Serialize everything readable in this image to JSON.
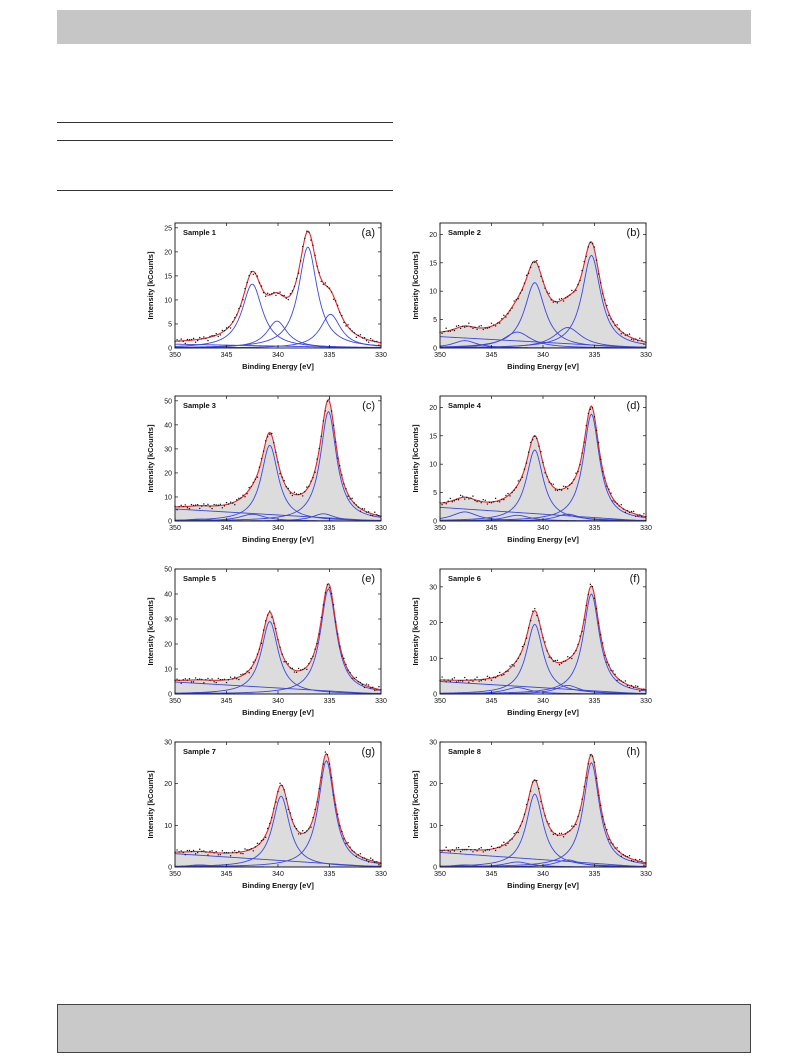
{
  "figure": {
    "x_axis_label": "Binding Energy [eV]",
    "y_axis_label": "Intensity [kCounts]"
  },
  "colors": {
    "data_points": "#111111",
    "envelope_fit": "#e0262b",
    "component_fit": "#3b46e0",
    "fill": "#dcdcdc",
    "top_bar": "#c6c6c6",
    "bottom_box": "#c9c9c9"
  },
  "chart_data": [
    {
      "type": "line",
      "title": "Sample 1",
      "panel_label": "(a)",
      "xlim": [
        350,
        330
      ],
      "ylim": [
        0,
        26
      ],
      "yticks": [
        0,
        5,
        10,
        15,
        20,
        25
      ],
      "xticks": [
        350,
        345,
        340,
        335,
        330
      ],
      "baseline": [
        {
          "x": 350,
          "y": 0.8
        },
        {
          "x": 330,
          "y": 0
        }
      ],
      "peaks": [
        {
          "position": 342.5,
          "height": 13.3,
          "width": 1.2
        },
        {
          "position": 340.1,
          "height": 5.6,
          "width": 1.2
        },
        {
          "position": 337.1,
          "height": 21.0,
          "width": 1.1
        },
        {
          "position": 334.9,
          "height": 7.0,
          "width": 1.2
        }
      ],
      "filled": false
    },
    {
      "type": "line",
      "title": "Sample 2",
      "panel_label": "(b)",
      "xlim": [
        350,
        330
      ],
      "ylim": [
        0,
        22
      ],
      "yticks": [
        0,
        5,
        10,
        15,
        20
      ],
      "xticks": [
        350,
        345,
        340,
        335,
        330
      ],
      "baseline": [
        {
          "x": 350,
          "y": 2.0
        },
        {
          "x": 330,
          "y": 0
        }
      ],
      "peaks": [
        {
          "position": 347.6,
          "height": 1.3,
          "width": 1.4
        },
        {
          "position": 342.5,
          "height": 2.8,
          "width": 1.6
        },
        {
          "position": 340.8,
          "height": 11.5,
          "width": 1.2
        },
        {
          "position": 337.6,
          "height": 3.6,
          "width": 1.6
        },
        {
          "position": 335.3,
          "height": 16.3,
          "width": 1.1
        }
      ],
      "filled": true
    },
    {
      "type": "line",
      "title": "Sample 3",
      "panel_label": "(c)",
      "xlim": [
        350,
        330
      ],
      "ylim": [
        0,
        52
      ],
      "yticks": [
        0,
        10,
        20,
        30,
        40,
        50
      ],
      "xticks": [
        350,
        345,
        340,
        335,
        330
      ],
      "baseline": [
        {
          "x": 350,
          "y": 5.0
        },
        {
          "x": 330,
          "y": 0
        }
      ],
      "peaks": [
        {
          "position": 347.6,
          "height": 0.8,
          "width": 1.5
        },
        {
          "position": 342.5,
          "height": 2.8,
          "width": 1.5
        },
        {
          "position": 340.8,
          "height": 31.5,
          "width": 1.0
        },
        {
          "position": 335.6,
          "height": 3.0,
          "width": 1.3
        },
        {
          "position": 335.1,
          "height": 45.5,
          "width": 0.95
        }
      ],
      "filled": true
    },
    {
      "type": "line",
      "title": "Sample 4",
      "panel_label": "(d)",
      "xlim": [
        350,
        330
      ],
      "ylim": [
        0,
        22
      ],
      "yticks": [
        0,
        5,
        10,
        15,
        20
      ],
      "xticks": [
        350,
        345,
        340,
        335,
        330
      ],
      "baseline": [
        {
          "x": 350,
          "y": 2.4
        },
        {
          "x": 330,
          "y": 0
        }
      ],
      "peaks": [
        {
          "position": 347.6,
          "height": 1.6,
          "width": 1.5
        },
        {
          "position": 342.5,
          "height": 1.0,
          "width": 1.5
        },
        {
          "position": 340.8,
          "height": 12.5,
          "width": 1.0
        },
        {
          "position": 337.6,
          "height": 1.2,
          "width": 1.4
        },
        {
          "position": 335.3,
          "height": 18.8,
          "width": 0.95
        }
      ],
      "filled": true
    },
    {
      "type": "line",
      "title": "Sample 5",
      "panel_label": "(e)",
      "xlim": [
        350,
        330
      ],
      "ylim": [
        0,
        50
      ],
      "yticks": [
        0,
        10,
        20,
        30,
        40,
        50
      ],
      "xticks": [
        350,
        345,
        340,
        335,
        330
      ],
      "baseline": [
        {
          "x": 350,
          "y": 4.8
        },
        {
          "x": 330,
          "y": 0
        }
      ],
      "peaks": [
        {
          "position": 347.6,
          "height": 0.6,
          "width": 1.5
        },
        {
          "position": 340.8,
          "height": 29.0,
          "width": 1.0
        },
        {
          "position": 335.1,
          "height": 42.0,
          "width": 0.95
        }
      ],
      "filled": true
    },
    {
      "type": "line",
      "title": "Sample 6",
      "panel_label": "(f)",
      "xlim": [
        350,
        330
      ],
      "ylim": [
        0,
        35
      ],
      "yticks": [
        0,
        10,
        20,
        30
      ],
      "xticks": [
        350,
        345,
        340,
        335,
        330
      ],
      "baseline": [
        {
          "x": 350,
          "y": 3.5
        },
        {
          "x": 330,
          "y": 0
        }
      ],
      "peaks": [
        {
          "position": 342.5,
          "height": 1.8,
          "width": 1.5
        },
        {
          "position": 340.8,
          "height": 19.5,
          "width": 1.0
        },
        {
          "position": 337.6,
          "height": 2.4,
          "width": 1.4
        },
        {
          "position": 335.3,
          "height": 28.0,
          "width": 0.95
        }
      ],
      "filled": true
    },
    {
      "type": "line",
      "title": "Sample 7",
      "panel_label": "(g)",
      "xlim": [
        350,
        330
      ],
      "ylim": [
        0,
        30
      ],
      "yticks": [
        0,
        10,
        20,
        30
      ],
      "xticks": [
        350,
        345,
        340,
        335,
        330
      ],
      "baseline": [
        {
          "x": 350,
          "y": 3.2
        },
        {
          "x": 330,
          "y": 0
        }
      ],
      "peaks": [
        {
          "position": 347.6,
          "height": 0.5,
          "width": 1.5
        },
        {
          "position": 339.7,
          "height": 17.0,
          "width": 1.0
        },
        {
          "position": 335.3,
          "height": 25.5,
          "width": 0.95
        }
      ],
      "filled": true
    },
    {
      "type": "line",
      "title": "Sample 8",
      "panel_label": "(h)",
      "xlim": [
        350,
        330
      ],
      "ylim": [
        0,
        30
      ],
      "yticks": [
        0,
        10,
        20,
        30
      ],
      "xticks": [
        350,
        345,
        340,
        335,
        330
      ],
      "baseline": [
        {
          "x": 350,
          "y": 3.5
        },
        {
          "x": 330,
          "y": 0
        }
      ],
      "peaks": [
        {
          "position": 347.6,
          "height": 0.5,
          "width": 1.5
        },
        {
          "position": 342.5,
          "height": 1.2,
          "width": 1.5
        },
        {
          "position": 340.8,
          "height": 17.5,
          "width": 1.0
        },
        {
          "position": 337.6,
          "height": 1.7,
          "width": 1.4
        },
        {
          "position": 335.3,
          "height": 25.0,
          "width": 0.95
        }
      ],
      "filled": true
    }
  ]
}
